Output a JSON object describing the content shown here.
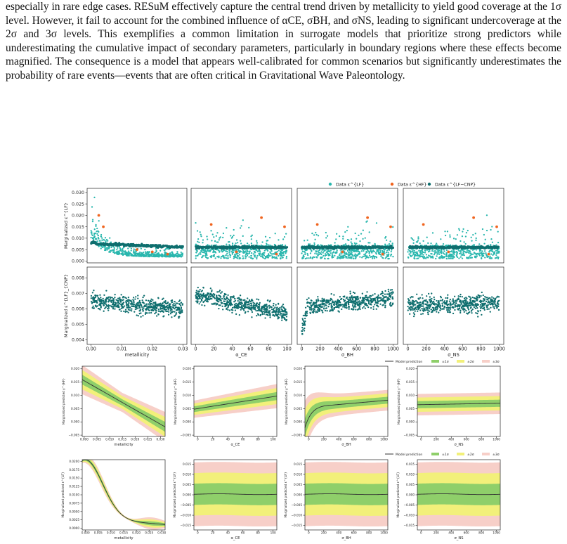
{
  "paragraph": "especially in rare edge cases. RESuM effectively capture the central trend driven by metallicity to yield good coverage at the 1σ level. However, it fail to account for the combined influence of αCE, σBH, and σNS, leading to significant undercoverage at the 2σ and 3σ levels. This exemplifies a common limitation in surrogate models that prioritize strong predictors while underestimating the cumulative impact of secondary parameters, particularly in boundary regions where these effects become magnified. The consequence is a model that appears well-calibrated for common scenarios but significantly underestimates the probability of rare events—events that are often critical in Gravitational Wave Paleontology.",
  "colors": {
    "lf": "#2ab7ae",
    "hf": "#f0641e",
    "cnp": "#0e6e6e",
    "s1": "#8fcf6a",
    "s2": "#f2f07a",
    "s3": "#f7cfc8",
    "line": "#333333"
  },
  "figure1": {
    "legend": [
      {
        "label": "Data ε^{LF}",
        "color": "#2ab7ae"
      },
      {
        "label": "Data ε^{HF}",
        "color": "#f0641e"
      },
      {
        "label": "Data ε^{LF−CNP}",
        "color": "#0e6e6e"
      }
    ],
    "ylabel_top": "Marginalized ε^{LF}",
    "ylabel_bottom": "Marginalized ε^{LF}_{CNP}",
    "xlabels": [
      "metallicity",
      "α_CE",
      "σ_BH",
      "σ_NS"
    ],
    "top_yticks": [
      "0.030",
      "0.025",
      "0.020",
      "0.015",
      "0.010",
      "0.005",
      "0.000"
    ],
    "bottom_yticks": [
      "0.008",
      "0.007",
      "0.006",
      "0.005",
      "0.004"
    ],
    "xticks_met": [
      "0.00",
      "0.01",
      "0.02",
      "0.03"
    ],
    "xticks_ace": [
      "0",
      "20",
      "40",
      "60",
      "80",
      "100"
    ],
    "xticks_sig": [
      "0",
      "200",
      "400",
      "600",
      "800",
      "1000"
    ]
  },
  "figure2": {
    "legend": [
      "Model prediction",
      "±1σ",
      "±2σ",
      "±3σ"
    ],
    "ylabel": "Marginalized predicted y^{HF}",
    "yticks": [
      "0.020",
      "0.015",
      "0.010",
      "0.005",
      "0.000",
      "−0.005"
    ],
    "xlabels": [
      "metallicity",
      "α_CE",
      "σ_BH",
      "σ_NS"
    ],
    "xticks_met": [
      "0.000",
      "0.005",
      "0.010",
      "0.015",
      "0.020",
      "0.025",
      "0.030"
    ],
    "xticks_ace": [
      "0",
      "20",
      "40",
      "60",
      "80",
      "100"
    ],
    "xticks_sig": [
      "0",
      "200",
      "400",
      "600",
      "800",
      "1000"
    ]
  },
  "figure3": {
    "legend": [
      "Model prediction",
      "±1σ",
      "±2σ",
      "±3σ"
    ],
    "ylabel": "Marginalized predicted ε^{LF}",
    "yticks_met": [
      "0.0200",
      "0.0175",
      "0.0150",
      "0.0125",
      "0.0100",
      "0.0075",
      "0.0050",
      "0.0025",
      "0.0000"
    ],
    "yticks_other": [
      "0.015",
      "0.010",
      "0.005",
      "0.000",
      "−0.005",
      "−0.010",
      "−0.015"
    ],
    "xlabels": [
      "metallicity",
      "α_CE",
      "σ_BH",
      "σ_NS"
    ]
  },
  "chart_data": [
    {
      "type": "scatter",
      "title": "",
      "xlabel": "metallicity",
      "ylabel": "Marginalized ε^{LF}",
      "xlim": [
        0,
        0.03
      ],
      "ylim": [
        0,
        0.031
      ],
      "series": [
        {
          "name": "Data ε^{LF}",
          "note": "dense cloud, high near 0, declines to ~0.002"
        },
        {
          "name": "Data ε^{LF−CNP}",
          "values_trend": [
            [
              0,
              0.0075
            ],
            [
              0.03,
              0.006
            ]
          ]
        },
        {
          "name": "Data ε^{HF}",
          "x": [
            0.0025,
            0.004,
            0.015,
            0.025
          ],
          "y": [
            0.02,
            0.015,
            0.005,
            0.003
          ]
        }
      ]
    },
    {
      "type": "scatter",
      "xlabel": "metallicity",
      "ylabel": "Marginalized ε^{LF}_{CNP}",
      "xlim": [
        0,
        0.03
      ],
      "ylim": [
        0.0037,
        0.0085
      ],
      "trend": [
        [
          0,
          0.0065
        ],
        [
          0.03,
          0.006
        ]
      ]
    },
    {
      "type": "line",
      "xlabel": "metallicity",
      "ylabel": "Marginalized predicted y^{HF}",
      "x": [
        0,
        0.005,
        0.01,
        0.015,
        0.02,
        0.025,
        0.03
      ],
      "series": [
        {
          "name": "Model prediction",
          "values": [
            0.0155,
            0.0125,
            0.0095,
            0.007,
            0.0045,
            0.002,
            -0.0005
          ]
        }
      ],
      "ylim": [
        -0.005,
        0.021
      ]
    },
    {
      "type": "line",
      "xlabel": "α_CE",
      "x": [
        0,
        20,
        40,
        60,
        80,
        100
      ],
      "series": [
        {
          "name": "Model prediction",
          "values": [
            0.005,
            0.0055,
            0.006,
            0.007,
            0.008,
            0.009
          ]
        }
      ]
    },
    {
      "type": "line",
      "xlabel": "σ_BH",
      "x": [
        0,
        100,
        200,
        400,
        600,
        800,
        1000
      ],
      "series": [
        {
          "name": "Model prediction",
          "values": [
            0.002,
            0.005,
            0.006,
            0.0065,
            0.007,
            0.008,
            0.0085
          ]
        }
      ]
    },
    {
      "type": "line",
      "xlabel": "σ_NS",
      "x": [
        0,
        200,
        400,
        600,
        800,
        1000
      ],
      "series": [
        {
          "name": "Model prediction",
          "values": [
            0.0065,
            0.0068,
            0.007,
            0.0072,
            0.007,
            0.007
          ]
        }
      ]
    },
    {
      "type": "line",
      "xlabel": "metallicity",
      "x": [
        0,
        0.002,
        0.005,
        0.01,
        0.015,
        0.02,
        0.025,
        0.03
      ],
      "series": [
        {
          "name": "Model prediction",
          "values": [
            0.0185,
            0.017,
            0.011,
            0.005,
            0.003,
            0.002,
            0.0015,
            0.001
          ]
        }
      ]
    },
    {
      "type": "line",
      "xlabel": "α_CE",
      "x": [
        0,
        50,
        100
      ],
      "series": [
        {
          "name": "Model prediction",
          "values": [
            0.0,
            0.0,
            0.0
          ]
        }
      ]
    },
    {
      "type": "line",
      "xlabel": "σ_BH",
      "x": [
        0,
        500,
        1000
      ],
      "series": [
        {
          "name": "Model prediction",
          "values": [
            0.0,
            0.0,
            0.0
          ]
        }
      ]
    },
    {
      "type": "line",
      "xlabel": "σ_NS",
      "x": [
        0,
        500,
        1000
      ],
      "series": [
        {
          "name": "Model prediction",
          "values": [
            0.0,
            0.0,
            0.0
          ]
        }
      ]
    }
  ]
}
